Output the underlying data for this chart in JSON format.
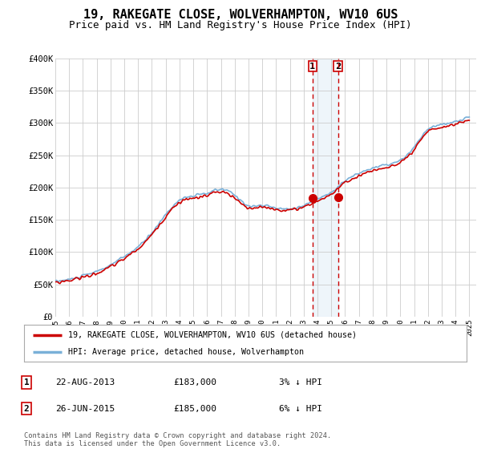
{
  "title": "19, RAKEGATE CLOSE, WOLVERHAMPTON, WV10 6US",
  "subtitle": "Price paid vs. HM Land Registry's House Price Index (HPI)",
  "ylim": [
    0,
    400000
  ],
  "yticks": [
    0,
    50000,
    100000,
    150000,
    200000,
    250000,
    300000,
    350000,
    400000
  ],
  "ytick_labels": [
    "£0",
    "£50K",
    "£100K",
    "£150K",
    "£200K",
    "£250K",
    "£300K",
    "£350K",
    "£400K"
  ],
  "xlim_start": 1995.0,
  "xlim_end": 2025.5,
  "hpi_color": "#7ab0d8",
  "price_color": "#cc0000",
  "marker1_date": "22-AUG-2013",
  "marker1_price": 183000,
  "marker1_pct": "3% ↓ HPI",
  "marker2_date": "26-JUN-2015",
  "marker2_price": 185000,
  "marker2_pct": "6% ↓ HPI",
  "marker1_x": 2013.64,
  "marker2_x": 2015.48,
  "legend_label1": "19, RAKEGATE CLOSE, WOLVERHAMPTON, WV10 6US (detached house)",
  "legend_label2": "HPI: Average price, detached house, Wolverhampton",
  "footnote": "Contains HM Land Registry data © Crown copyright and database right 2024.\nThis data is licensed under the Open Government Licence v3.0.",
  "background_color": "#ffffff",
  "grid_color": "#cccccc",
  "title_fontsize": 11,
  "subtitle_fontsize": 9
}
